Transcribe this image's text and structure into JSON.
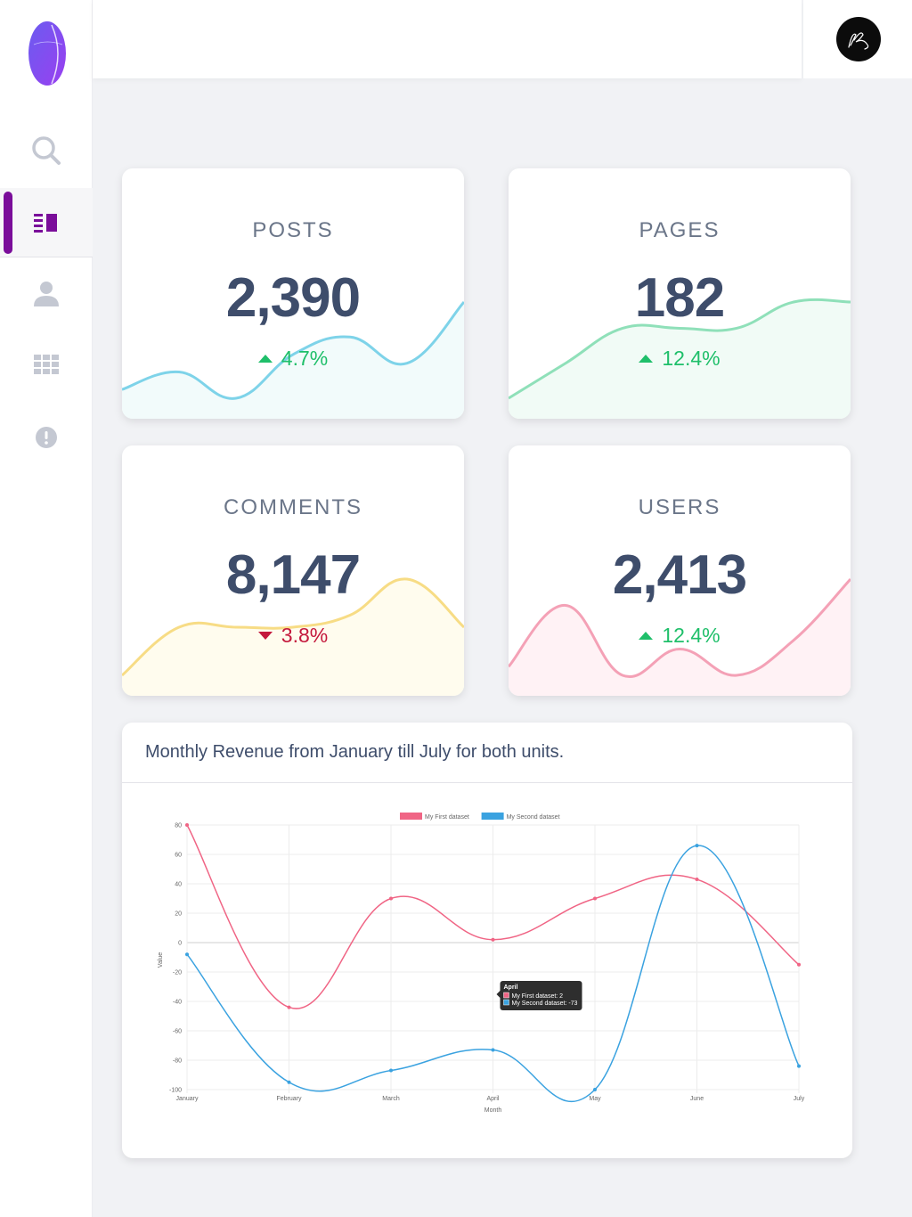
{
  "app": {
    "avatar_icon": "signature-avatar-icon",
    "accent_color": "#7a0d9a"
  },
  "sidebar": {
    "items": [
      {
        "name": "search",
        "icon": "search-icon"
      },
      {
        "name": "posts",
        "icon": "list-icon",
        "active": true
      },
      {
        "name": "users",
        "icon": "user-icon"
      },
      {
        "name": "grid",
        "icon": "grid-icon"
      },
      {
        "name": "alert",
        "icon": "alert-icon"
      }
    ]
  },
  "stats": [
    {
      "label": "POSTS",
      "value": "2,390",
      "delta": "4.7%",
      "direction": "up",
      "color": "#7ed3e9",
      "fill": "#f2fbfb",
      "trend": [
        3,
        5,
        2,
        7,
        9,
        6,
        13
      ]
    },
    {
      "label": "PAGES",
      "value": "182",
      "delta": "12.4%",
      "direction": "up",
      "color": "#8fe0b9",
      "fill": "#f1fbf6",
      "trend": [
        0,
        4,
        8,
        8,
        8,
        11,
        11
      ]
    },
    {
      "label": "COMMENTS",
      "value": "8,147",
      "delta": "3.8%",
      "direction": "down",
      "color": "#f7dc85",
      "fill": "#fffcee",
      "trend": [
        0,
        4,
        4,
        4,
        5,
        8,
        4
      ]
    },
    {
      "label": "USERS",
      "value": "2,413",
      "delta": "12.4%",
      "direction": "up",
      "color": "#f4a1b6",
      "fill": "#fff2f5",
      "trend": [
        1,
        8,
        0,
        3,
        0,
        4,
        11
      ]
    }
  ],
  "revenue": {
    "title": "Monthly Revenue from January till July for both units."
  },
  "chart_data": {
    "type": "line",
    "categories": [
      "January",
      "February",
      "March",
      "April",
      "May",
      "June",
      "July"
    ],
    "series": [
      {
        "name": "My First dataset",
        "color": "#f06585",
        "values": [
          80,
          -44,
          30,
          2,
          30,
          43,
          -15
        ]
      },
      {
        "name": "My Second dataset",
        "color": "#3aa2e0",
        "values": [
          -8,
          -95,
          -87,
          -73,
          -100,
          66,
          -84
        ]
      }
    ],
    "yticks": [
      "80",
      "60",
      "40",
      "20",
      "0",
      "-20",
      "-40",
      "-60",
      "-80",
      "-100"
    ],
    "ylim": [
      -100,
      80
    ],
    "xlabel": "Month",
    "ylabel": "Value",
    "grid": true,
    "legend": "top",
    "tooltip": {
      "title": "April",
      "line1": "My First dataset: 2",
      "line2": "My Second dataset: -73"
    }
  }
}
